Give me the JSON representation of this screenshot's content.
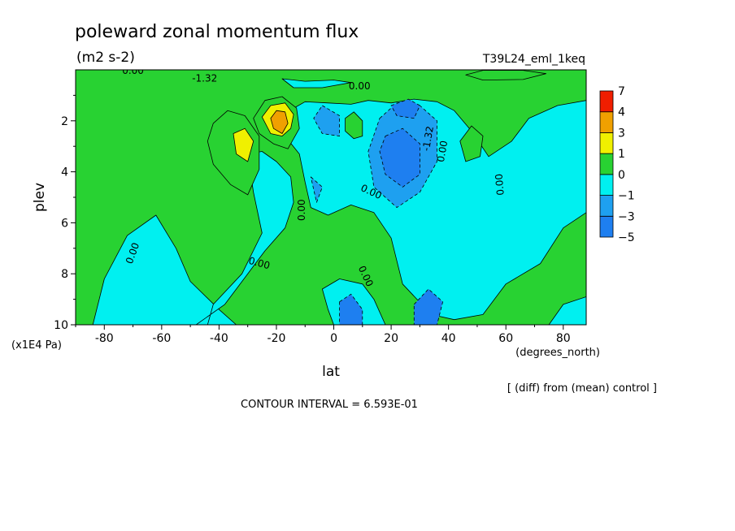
{
  "chart_data": {
    "type": "heatmap",
    "title": "poleward zonal momentum flux",
    "units": "(m2 s-2)",
    "dataset": "T39L24_eml_1keq",
    "xlabel": "lat",
    "xunits": "(degrees_north)",
    "ylabel": "plev",
    "yunits": "(x1E4 Pa)",
    "xlim": [
      -90,
      88
    ],
    "ylim": [
      10,
      0
    ],
    "x_ticks": [
      "-80",
      "-60",
      "-40",
      "-20",
      "0",
      "20",
      "40",
      "60",
      "80"
    ],
    "y_ticks": [
      "2",
      "4",
      "6",
      "8",
      "10"
    ],
    "footer_right": "[ (diff) from (mean) control ]",
    "footer_center": "CONTOUR INTERVAL = 6.593E-01",
    "legend_labels": [
      "7",
      "4",
      "3",
      "1",
      "0",
      "−1",
      "−3",
      "−5"
    ],
    "levels": [
      {
        "name": "−5 to −3",
        "color": "#1e7ff0"
      },
      {
        "name": "−3 to −1",
        "color": "#1ea0f0"
      },
      {
        "name": "−1 to 0",
        "color": "#00f0f0"
      },
      {
        "name": "0 to 1",
        "color": "#28d232"
      },
      {
        "name": "1 to 3",
        "color": "#f0f000"
      },
      {
        "name": "3 to 4",
        "color": "#f0a000"
      },
      {
        "name": "4 to 7",
        "color": "#f01e00"
      }
    ],
    "contour_labels": [
      {
        "text": "0.00",
        "lat": -70,
        "plev": 7.2,
        "rot": -70
      },
      {
        "text": "0.00",
        "lat": -26,
        "plev": 7.6,
        "rot": 15
      },
      {
        "text": "0.00",
        "lat": -11,
        "plev": 5.5,
        "rot": -90
      },
      {
        "text": "0.00",
        "lat": 11,
        "plev": 8.1,
        "rot": 65
      },
      {
        "text": "0.00",
        "lat": 13,
        "plev": 4.8,
        "rot": 25
      },
      {
        "text": "0.00",
        "lat": 58,
        "plev": 4.5,
        "rot": -95
      },
      {
        "text": "0.00",
        "lat": 38,
        "plev": 3.2,
        "rot": -80
      },
      {
        "text": "0.00",
        "lat": 9,
        "plev": 0.65,
        "rot": 0
      },
      {
        "text": "0.00",
        "lat": -70,
        "plev": 0.05,
        "rot": 0
      },
      {
        "text": "-1.32",
        "lat": -45,
        "plev": 0.35,
        "rot": 0
      },
      {
        "text": "-1.32",
        "lat": 33,
        "plev": 2.7,
        "rot": -80
      }
    ],
    "regions": [
      {
        "level": 2,
        "points": [
          [
            -90,
            10
          ],
          [
            -84,
            10
          ],
          [
            -80,
            8.2
          ],
          [
            -72,
            6.5
          ],
          [
            -62,
            5.7
          ],
          [
            -55,
            7
          ],
          [
            -50,
            8.3
          ],
          [
            -40,
            9.4
          ],
          [
            -34,
            10
          ],
          [
            -90,
            10
          ]
        ]
      },
      {
        "level": 2,
        "points": [
          [
            -48,
            10
          ],
          [
            -38,
            9.2
          ],
          [
            -30,
            8
          ],
          [
            -24,
            7.1
          ],
          [
            -17,
            6.2
          ],
          [
            -14,
            5.2
          ],
          [
            -15,
            4.2
          ],
          [
            -20,
            3.6
          ],
          [
            -25,
            3.2
          ],
          [
            -30,
            3.3
          ],
          [
            -28,
            4.8
          ],
          [
            -25,
            6.4
          ],
          [
            -32,
            8
          ],
          [
            -42,
            9.2
          ],
          [
            -44,
            10
          ]
        ]
      },
      {
        "level": 2,
        "points": [
          [
            -17,
            2.6
          ],
          [
            -12,
            3.3
          ],
          [
            -10,
            4.4
          ],
          [
            -8,
            5.4
          ],
          [
            -2,
            5.7
          ],
          [
            6,
            5.3
          ],
          [
            14,
            5.6
          ],
          [
            20,
            6.6
          ],
          [
            24,
            8.4
          ],
          [
            34,
            9.6
          ],
          [
            42,
            9.8
          ],
          [
            52,
            9.6
          ],
          [
            60,
            8.4
          ],
          [
            72,
            7.6
          ],
          [
            80,
            6.2
          ],
          [
            88,
            5.6
          ],
          [
            88,
            1.2
          ],
          [
            78,
            1.4
          ],
          [
            68,
            1.9
          ],
          [
            62,
            2.8
          ],
          [
            54,
            3.4
          ],
          [
            48,
            2.4
          ],
          [
            42,
            1.6
          ],
          [
            36,
            1.25
          ],
          [
            28,
            1.15
          ],
          [
            20,
            1.3
          ],
          [
            12,
            1.2
          ],
          [
            6,
            1.35
          ],
          [
            -2,
            1.3
          ],
          [
            -10,
            1.25
          ],
          [
            -17,
            1.7
          ]
        ]
      },
      {
        "level": 2,
        "points": [
          [
            -4,
            8.6
          ],
          [
            2,
            8.2
          ],
          [
            10,
            8.4
          ],
          [
            14,
            9
          ],
          [
            18,
            10
          ],
          [
            0,
            10
          ],
          [
            -2,
            9.4
          ]
        ]
      },
      {
        "level": 2,
        "points": [
          [
            75,
            10
          ],
          [
            80,
            9.2
          ],
          [
            88,
            8.9
          ],
          [
            88,
            10
          ]
        ]
      },
      {
        "level": 2,
        "points": [
          [
            -18,
            0.35
          ],
          [
            -10,
            0.45
          ],
          [
            0,
            0.4
          ],
          [
            6,
            0.5
          ],
          [
            -4,
            0.7
          ],
          [
            -14,
            0.7
          ]
        ]
      },
      {
        "level": 1,
        "points": [
          [
            -4,
            1.4
          ],
          [
            2,
            1.8
          ],
          [
            2,
            2.6
          ],
          [
            -4,
            2.5
          ],
          [
            -7,
            1.9
          ]
        ]
      },
      {
        "level": 1,
        "points": [
          [
            16,
            1.9
          ],
          [
            22,
            1.3
          ],
          [
            30,
            1.4
          ],
          [
            36,
            2.0
          ],
          [
            36,
            3.6
          ],
          [
            30,
            4.8
          ],
          [
            22,
            5.4
          ],
          [
            14,
            4.6
          ],
          [
            12,
            3.2
          ]
        ]
      },
      {
        "level": 1,
        "points": [
          [
            -8,
            4.2
          ],
          [
            -4,
            4.6
          ],
          [
            -6,
            5.2
          ]
        ]
      },
      {
        "level": 0,
        "points": [
          [
            18,
            2.6
          ],
          [
            24,
            2.3
          ],
          [
            30,
            2.9
          ],
          [
            30,
            4.1
          ],
          [
            24,
            4.6
          ],
          [
            18,
            4.1
          ],
          [
            16,
            3.2
          ]
        ]
      },
      {
        "level": 0,
        "points": [
          [
            20,
            1.4
          ],
          [
            26,
            1.15
          ],
          [
            30,
            1.4
          ],
          [
            28,
            1.9
          ],
          [
            22,
            1.8
          ]
        ]
      },
      {
        "level": 0,
        "points": [
          [
            2,
            9.1
          ],
          [
            6,
            8.8
          ],
          [
            10,
            9.4
          ],
          [
            10,
            10
          ],
          [
            2,
            10
          ]
        ]
      },
      {
        "level": 0,
        "points": [
          [
            28,
            9.2
          ],
          [
            33,
            8.6
          ],
          [
            38,
            9.1
          ],
          [
            36,
            10
          ],
          [
            28,
            10
          ]
        ]
      },
      {
        "level": 3,
        "points": [
          [
            -44,
            2.8
          ],
          [
            -42,
            2.1
          ],
          [
            -37,
            1.6
          ],
          [
            -31,
            1.8
          ],
          [
            -26,
            2.6
          ],
          [
            -26,
            3.9
          ],
          [
            -30,
            4.9
          ],
          [
            -36,
            4.5
          ],
          [
            -42,
            3.7
          ]
        ]
      },
      {
        "level": 4,
        "points": [
          [
            -35,
            2.5
          ],
          [
            -31,
            2.3
          ],
          [
            -28,
            2.8
          ],
          [
            -30,
            3.6
          ],
          [
            -34,
            3.3
          ]
        ]
      },
      {
        "level": 3,
        "points": [
          [
            -28,
            1.9
          ],
          [
            -24,
            1.2
          ],
          [
            -18,
            1.05
          ],
          [
            -13,
            1.5
          ],
          [
            -12,
            2.3
          ],
          [
            -16,
            3.1
          ],
          [
            -21,
            2.9
          ],
          [
            -26,
            2.5
          ]
        ]
      },
      {
        "level": 4,
        "points": [
          [
            -25,
            1.85
          ],
          [
            -22,
            1.4
          ],
          [
            -17,
            1.3
          ],
          [
            -14,
            1.75
          ],
          [
            -15,
            2.3
          ],
          [
            -18,
            2.6
          ],
          [
            -22,
            2.5
          ]
        ]
      },
      {
        "level": 5,
        "points": [
          [
            -22,
            1.9
          ],
          [
            -20,
            1.6
          ],
          [
            -17,
            1.65
          ],
          [
            -16,
            2.1
          ],
          [
            -18,
            2.5
          ],
          [
            -21,
            2.3
          ]
        ]
      },
      {
        "level": 3,
        "points": [
          [
            4,
            1.9
          ],
          [
            7,
            1.65
          ],
          [
            10,
            2.0
          ],
          [
            10,
            2.6
          ],
          [
            7,
            2.7
          ],
          [
            4,
            2.4
          ]
        ]
      },
      {
        "level": 3,
        "points": [
          [
            44,
            2.8
          ],
          [
            48,
            2.2
          ],
          [
            52,
            2.6
          ],
          [
            51,
            3.4
          ],
          [
            46,
            3.6
          ]
        ]
      },
      {
        "level": 3,
        "points": [
          [
            46,
            0.2
          ],
          [
            52,
            0.02
          ],
          [
            66,
            0.02
          ],
          [
            74,
            0.15
          ],
          [
            66,
            0.38
          ],
          [
            52,
            0.4
          ]
        ]
      }
    ]
  }
}
